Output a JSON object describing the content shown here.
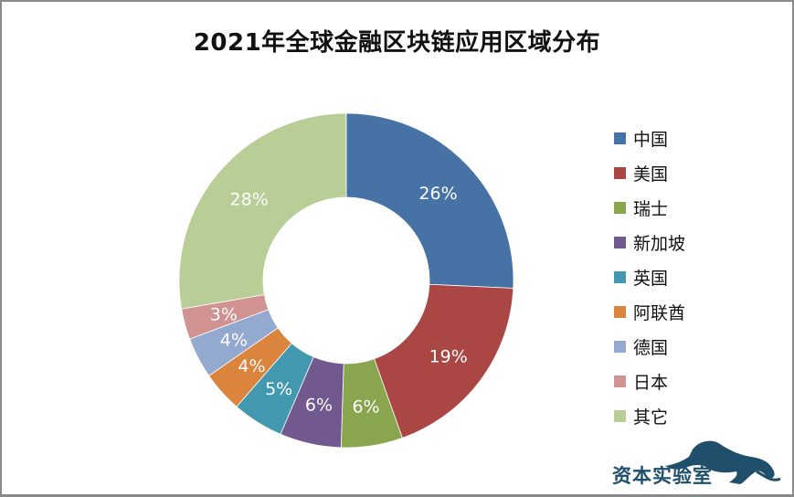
{
  "title": "2021年全球金融区块链应用区域分布",
  "chart_data": {
    "type": "pie",
    "variant": "donut",
    "title": "2021年全球金融区块链应用区域分布",
    "categories": [
      "中国",
      "美国",
      "瑞士",
      "新加坡",
      "英国",
      "阿联酋",
      "德国",
      "日本",
      "其它"
    ],
    "values": [
      26,
      19,
      6,
      6,
      5,
      4,
      4,
      3,
      28
    ],
    "labels": [
      "26%",
      "19%",
      "6%",
      "6%",
      "5%",
      "4%",
      "4%",
      "3%",
      "28%"
    ],
    "colors": [
      "#4672a6",
      "#aa4745",
      "#89a54e",
      "#71588f",
      "#4198af",
      "#db843d",
      "#93a9cf",
      "#d19392",
      "#b9cd96"
    ],
    "unit": "%",
    "legend_position": "right",
    "start_angle_deg": 0,
    "direction": "clockwise"
  },
  "legend": {
    "items": [
      {
        "label": "中国",
        "color": "#4672a6"
      },
      {
        "label": "美国",
        "color": "#aa4745"
      },
      {
        "label": "瑞士",
        "color": "#89a54e"
      },
      {
        "label": "新加坡",
        "color": "#71588f"
      },
      {
        "label": "英国",
        "color": "#4198af"
      },
      {
        "label": "阿联酋",
        "color": "#db843d"
      },
      {
        "label": "德国",
        "color": "#93a9cf"
      },
      {
        "label": "日本",
        "color": "#d19392"
      },
      {
        "label": "其它",
        "color": "#b9cd96"
      }
    ]
  },
  "watermark": {
    "text": "资本实验室",
    "icon": "leaping-panther-icon",
    "color": "#1f4f6b"
  }
}
